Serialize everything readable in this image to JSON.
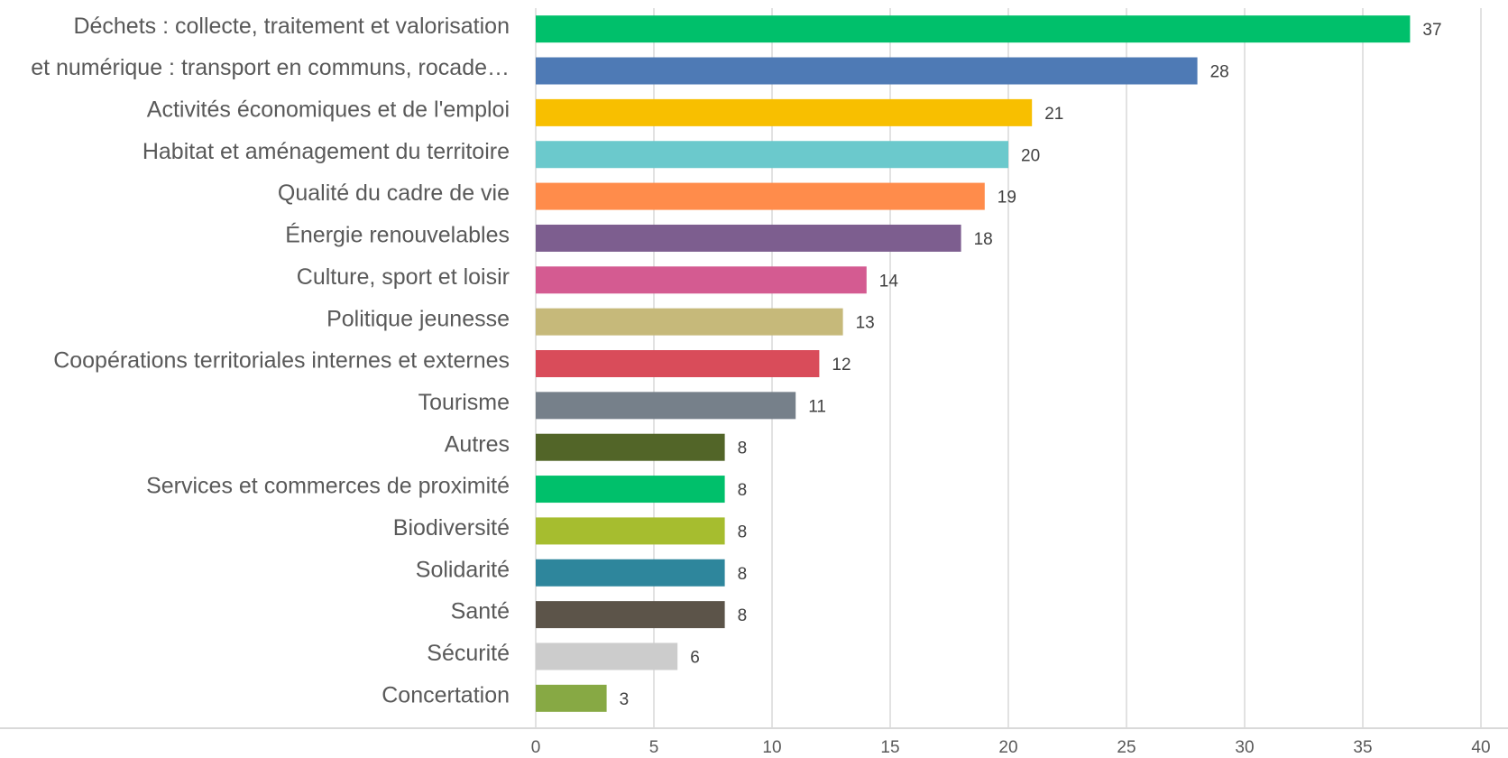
{
  "chart_data": {
    "type": "bar",
    "orientation": "horizontal",
    "categories": [
      "Déchets : collecte, traitement et valorisation",
      "et numérique : transport en communs, rocade…",
      "Activités économiques et de l'emploi",
      "Habitat et aménagement du territoire",
      "Qualité du cadre de vie",
      "Énergie renouvelables",
      "Culture, sport et loisir",
      "Politique  jeunesse",
      "Coopérations territoriales internes et externes",
      "Tourisme",
      "Autres",
      "Services et commerces de proximité",
      "Biodiversité",
      "Solidarité",
      "Santé",
      "Sécurité",
      "Concertation"
    ],
    "values": [
      37,
      28,
      21,
      20,
      19,
      18,
      14,
      13,
      12,
      11,
      8,
      8,
      8,
      8,
      8,
      6,
      3
    ],
    "colors": [
      "#00c06b",
      "#4e7ab5",
      "#f8bf00",
      "#6bc9cc",
      "#ff8c4b",
      "#7d5e8f",
      "#d45b91",
      "#c6b97a",
      "#d94c5a",
      "#76808a",
      "#526528",
      "#00c06b",
      "#a6bd2f",
      "#2e869c",
      "#5c5449",
      "#cccccc",
      "#87a944"
    ],
    "xlim": [
      0,
      40
    ],
    "xticks": [
      0,
      5,
      10,
      15,
      20,
      25,
      30,
      35,
      40
    ],
    "grid": true
  }
}
